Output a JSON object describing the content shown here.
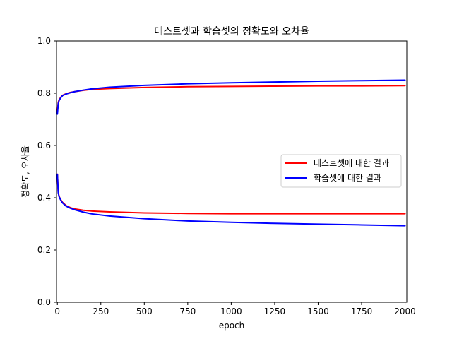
{
  "chart_data": {
    "type": "line",
    "title": "테스트셋과 학습셋의 정확도와 오차율",
    "xlabel": "epoch",
    "ylabel": "정확도, 오차율",
    "xlim": [
      -5,
      2010
    ],
    "ylim": [
      0.0,
      1.0
    ],
    "xticks": [
      0,
      250,
      500,
      750,
      1000,
      1250,
      1500,
      1750,
      2000
    ],
    "yticks": [
      0.0,
      0.2,
      0.4,
      0.6,
      0.8,
      1.0
    ],
    "grid": false,
    "legend": {
      "position": "center-right",
      "entries": [
        {
          "label": "테스트셋에 대한 결과",
          "color": "#ff0000"
        },
        {
          "label": "학습셋에 대한 결과",
          "color": "#0000ff"
        }
      ]
    },
    "series": [
      {
        "color": "#ff0000",
        "legend_index": 0,
        "metric": "accuracy",
        "x": [
          0,
          5,
          10,
          20,
          30,
          50,
          75,
          100,
          150,
          200,
          300,
          500,
          750,
          1000,
          1250,
          1500,
          1750,
          2000
        ],
        "y": [
          0.73,
          0.765,
          0.775,
          0.785,
          0.792,
          0.798,
          0.803,
          0.806,
          0.811,
          0.815,
          0.818,
          0.822,
          0.825,
          0.826,
          0.827,
          0.828,
          0.828,
          0.829
        ]
      },
      {
        "color": "#0000ff",
        "legend_index": 1,
        "metric": "accuracy",
        "x": [
          0,
          5,
          10,
          20,
          30,
          50,
          75,
          100,
          150,
          200,
          300,
          500,
          750,
          1000,
          1250,
          1500,
          1750,
          2000
        ],
        "y": [
          0.72,
          0.76,
          0.772,
          0.783,
          0.791,
          0.797,
          0.802,
          0.806,
          0.812,
          0.817,
          0.823,
          0.83,
          0.836,
          0.84,
          0.843,
          0.846,
          0.848,
          0.85
        ]
      },
      {
        "color": "#ff0000",
        "legend_index": 0,
        "metric": "loss",
        "x": [
          0,
          5,
          10,
          20,
          30,
          50,
          75,
          100,
          150,
          200,
          300,
          500,
          750,
          1000,
          1250,
          1500,
          1750,
          2000
        ],
        "y": [
          0.49,
          0.42,
          0.405,
          0.392,
          0.382,
          0.37,
          0.362,
          0.357,
          0.352,
          0.349,
          0.346,
          0.342,
          0.34,
          0.339,
          0.339,
          0.339,
          0.339,
          0.339
        ]
      },
      {
        "color": "#0000ff",
        "legend_index": 1,
        "metric": "loss",
        "x": [
          0,
          5,
          10,
          20,
          30,
          50,
          75,
          100,
          150,
          200,
          300,
          500,
          750,
          1000,
          1250,
          1500,
          1750,
          2000
        ],
        "y": [
          0.49,
          0.42,
          0.404,
          0.39,
          0.38,
          0.368,
          0.36,
          0.354,
          0.345,
          0.338,
          0.33,
          0.32,
          0.311,
          0.306,
          0.302,
          0.299,
          0.296,
          0.293
        ]
      }
    ]
  }
}
